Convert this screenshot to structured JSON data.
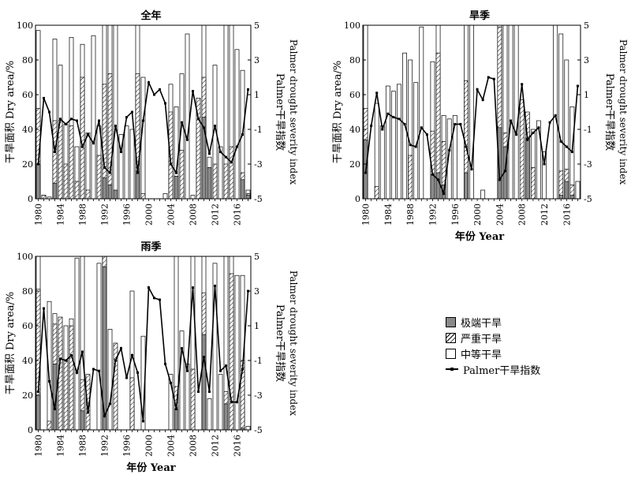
{
  "legend": {
    "extreme": "极端干旱",
    "severe": "严重干旱",
    "moderate": "中等干旱",
    "pdsi": "Palmer干旱指数"
  },
  "chart_data": [
    {
      "type": "bar",
      "title": "全年",
      "xlabel": "",
      "ylabel": "干旱面积 Dry area/%",
      "y2label_cn": "Palmer干旱指数",
      "y2label_en": "Palmer drought severity index",
      "ylim": [
        0,
        100
      ],
      "y2lim": [
        -5,
        5
      ],
      "yticks": [
        0,
        20,
        40,
        60,
        80,
        100
      ],
      "y2ticks": [
        -5,
        -3,
        -1,
        1,
        3,
        5
      ],
      "xticks": [
        "1980",
        "1984",
        "1988",
        "1992",
        "1996",
        "2000",
        "2004",
        "2008",
        "2012",
        "2016"
      ],
      "x": [
        1980,
        1981,
        1982,
        1983,
        1984,
        1985,
        1986,
        1987,
        1988,
        1989,
        1990,
        1991,
        1992,
        1993,
        1994,
        1995,
        1996,
        1997,
        1998,
        1999,
        2000,
        2001,
        2002,
        2003,
        2004,
        2005,
        2006,
        2007,
        2008,
        2009,
        2010,
        2011,
        2012,
        2013,
        2014,
        2015,
        2016,
        2017,
        2018
      ],
      "series": [
        {
          "name": "极端干旱",
          "values": [
            20,
            0,
            0,
            9,
            0,
            0,
            0,
            0,
            0,
            0,
            0,
            0,
            12,
            8,
            5,
            0,
            0,
            0,
            16,
            0,
            0,
            0,
            0,
            0,
            0,
            13,
            0,
            0,
            0,
            0,
            47,
            18,
            0,
            0,
            0,
            0,
            0,
            11,
            2
          ]
        },
        {
          "name": "严重干旱",
          "values": [
            52,
            2,
            0,
            45,
            45,
            20,
            42,
            10,
            70,
            5,
            0,
            25,
            66,
            72,
            0,
            0,
            0,
            0,
            72,
            3,
            0,
            0,
            0,
            0,
            50,
            0,
            28,
            0,
            0,
            58,
            70,
            0,
            20,
            0,
            20,
            30,
            0,
            15,
            3
          ]
        },
        {
          "name": "中等干旱",
          "values": [
            97,
            2,
            1,
            92,
            77,
            43,
            93,
            30,
            89,
            38,
            94,
            42,
            100,
            100,
            100,
            37,
            42,
            40,
            100,
            70,
            0,
            0,
            0,
            3,
            66,
            53,
            72,
            95,
            2,
            41,
            100,
            24,
            77,
            30,
            100,
            100,
            86,
            74,
            5
          ]
        },
        {
          "name": "Palmer干旱指数",
          "values": [
            -3.0,
            0.8,
            0.0,
            -2.3,
            -0.4,
            -0.7,
            -0.4,
            -0.5,
            -2.0,
            -1.3,
            -1.8,
            -0.5,
            -3.2,
            -3.5,
            -0.8,
            -2.3,
            -0.3,
            -0.0,
            -3.5,
            -0.5,
            1.7,
            1.0,
            1.3,
            0.5,
            -3.0,
            -3.5,
            -0.6,
            -1.6,
            1.2,
            -0.4,
            -0.9,
            -2.4,
            -0.8,
            -2.3,
            -2.6,
            -2.9,
            -2.0,
            -1.3,
            1.3
          ]
        }
      ]
    },
    {
      "type": "bar",
      "title": "旱季",
      "xlabel": "年份 Year",
      "ylabel": "干旱面积 Dry area/%",
      "y2label_cn": "Palmer干旱指数",
      "y2label_en": "Palmer drought severity index",
      "ylim": [
        0,
        100
      ],
      "y2lim": [
        -5,
        5
      ],
      "yticks": [
        0,
        20,
        40,
        60,
        80,
        100
      ],
      "y2ticks": [
        -5,
        -3,
        -1,
        1,
        3,
        5
      ],
      "xticks": [
        "1980",
        "1984",
        "1988",
        "1992",
        "1996",
        "2000",
        "2004",
        "2008",
        "2012",
        "2016"
      ],
      "x": [
        1980,
        1981,
        1982,
        1983,
        1984,
        1985,
        1986,
        1987,
        1988,
        1989,
        1990,
        1991,
        1992,
        1993,
        1994,
        1995,
        1996,
        1997,
        1998,
        1999,
        2000,
        2001,
        2002,
        2003,
        2004,
        2005,
        2006,
        2007,
        2008,
        2009,
        2010,
        2011,
        2012,
        2013,
        2014,
        2015,
        2016,
        2017,
        2018
      ],
      "series": [
        {
          "name": "极端干旱",
          "values": [
            34,
            0,
            0,
            0,
            0,
            0,
            0,
            0,
            0,
            0,
            0,
            0,
            14,
            15,
            8,
            0,
            0,
            0,
            15,
            0,
            0,
            0,
            0,
            0,
            41,
            30,
            0,
            0,
            0,
            35,
            0,
            0,
            0,
            0,
            0,
            2,
            10,
            2,
            0
          ]
        },
        {
          "name": "严重干旱",
          "values": [
            52,
            0,
            7,
            0,
            0,
            0,
            0,
            0,
            25,
            0,
            0,
            0,
            39,
            84,
            33,
            0,
            0,
            0,
            68,
            0,
            0,
            0,
            0,
            0,
            99,
            38,
            0,
            0,
            57,
            50,
            18,
            0,
            0,
            0,
            0,
            16,
            17,
            8,
            0
          ]
        },
        {
          "name": "中等干旱",
          "values": [
            100,
            0,
            55,
            42,
            65,
            62,
            66,
            84,
            80,
            67,
            99,
            0,
            79,
            100,
            48,
            46,
            48,
            0,
            100,
            100,
            0,
            5,
            0,
            0,
            100,
            100,
            100,
            100,
            0,
            0,
            40,
            45,
            27,
            0,
            100,
            95,
            80,
            53,
            10
          ]
        },
        {
          "name": "Palmer干旱指数",
          "values": [
            -3.5,
            -0.8,
            1.1,
            -1.0,
            -0.1,
            -0.3,
            -0.4,
            -0.7,
            -1.9,
            -2.0,
            -0.9,
            -1.3,
            -3.6,
            -3.9,
            -4.7,
            -2.2,
            -0.7,
            -0.7,
            -2.0,
            -3.3,
            1.3,
            0.7,
            2.0,
            1.9,
            -3.9,
            -3.4,
            -0.5,
            -1.3,
            1.6,
            -1.6,
            -1.2,
            -0.9,
            -3.0,
            -0.6,
            -0.2,
            -1.7,
            -2.0,
            -2.3,
            1.5
          ]
        }
      ]
    },
    {
      "type": "bar",
      "title": "雨季",
      "xlabel": "年份 Year",
      "ylabel": "干旱面积 Dry area/%",
      "y2label_cn": "Palmer干旱指数",
      "y2label_en": "Palmer drought severity index",
      "ylim": [
        0,
        100
      ],
      "y2lim": [
        -5,
        5
      ],
      "yticks": [
        0,
        20,
        40,
        60,
        80,
        100
      ],
      "y2ticks": [
        -5,
        -3,
        -1,
        1,
        3,
        5
      ],
      "xticks": [
        "1980",
        "1984",
        "1988",
        "1992",
        "1996",
        "2000",
        "2004",
        "2008",
        "2012",
        "2016"
      ],
      "x": [
        1980,
        1981,
        1982,
        1983,
        1984,
        1985,
        1986,
        1987,
        1988,
        1989,
        1990,
        1991,
        1992,
        1993,
        1994,
        1995,
        1996,
        1997,
        1998,
        1999,
        2000,
        2001,
        2002,
        2003,
        2004,
        2005,
        2006,
        2007,
        2008,
        2009,
        2010,
        2011,
        2012,
        2013,
        2014,
        2015,
        2016,
        2017,
        2018
      ],
      "series": [
        {
          "name": "极端干旱",
          "values": [
            20,
            0,
            0,
            38,
            0,
            0,
            0,
            0,
            11,
            0,
            0,
            0,
            94,
            0,
            0,
            0,
            0,
            0,
            0,
            0,
            0,
            0,
            0,
            0,
            0,
            12,
            0,
            0,
            0,
            0,
            55,
            0,
            0,
            0,
            15,
            0,
            0,
            1,
            0
          ]
        },
        {
          "name": "严重干旱",
          "values": [
            81,
            0,
            5,
            61,
            65,
            40,
            60,
            0,
            29,
            32,
            0,
            0,
            100,
            0,
            50,
            0,
            0,
            30,
            0,
            0,
            0,
            0,
            0,
            0,
            0,
            25,
            0,
            0,
            35,
            0,
            79,
            0,
            0,
            0,
            22,
            90,
            0,
            40,
            0
          ]
        },
        {
          "name": "中等干旱",
          "values": [
            100,
            0,
            74,
            67,
            52,
            60,
            64,
            99,
            100,
            0,
            0,
            96,
            100,
            58,
            0,
            0,
            0,
            80,
            0,
            54,
            0,
            0,
            0,
            0,
            32,
            100,
            57,
            38,
            100,
            0,
            100,
            18,
            96,
            32,
            100,
            100,
            89,
            89,
            2
          ]
        },
        {
          "name": "Palmer干旱指数",
          "values": [
            -2.8,
            2.0,
            -2.2,
            -3.8,
            -0.9,
            -1.0,
            -0.7,
            -1.7,
            -0.5,
            -4.0,
            -1.5,
            -1.6,
            -4.2,
            -3.5,
            -1.0,
            -0.3,
            -2.0,
            -0.7,
            -1.7,
            -4.5,
            3.2,
            2.6,
            2.5,
            -1.2,
            -2.3,
            -3.8,
            -0.3,
            -1.6,
            3.2,
            -2.8,
            -0.8,
            -2.8,
            3.3,
            -1.6,
            -1.3,
            -3.4,
            -3.4,
            -1.5,
            3.0
          ]
        }
      ]
    }
  ]
}
